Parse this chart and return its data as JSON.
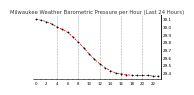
{
  "hours": [
    0,
    1,
    2,
    3,
    4,
    5,
    6,
    7,
    8,
    9,
    10,
    11,
    12,
    13,
    14,
    15,
    16,
    17,
    18,
    19,
    20,
    21,
    22,
    23
  ],
  "pressure": [
    30.1,
    30.09,
    30.07,
    30.04,
    30.0,
    29.97,
    29.93,
    29.87,
    29.8,
    29.73,
    29.65,
    29.58,
    29.52,
    29.47,
    29.43,
    29.4,
    29.39,
    29.38,
    29.37,
    29.37,
    29.37,
    29.37,
    29.36,
    29.36
  ],
  "ylim": [
    29.32,
    30.16
  ],
  "yticks": [
    29.4,
    29.5,
    29.6,
    29.7,
    29.8,
    29.9,
    30.0,
    30.1
  ],
  "ytick_labels": [
    "29.4",
    "29.5",
    "29.6",
    "29.7",
    "29.8",
    "29.9",
    "30.0",
    "30.1"
  ],
  "line_color": "#cc0000",
  "marker_color": "#000000",
  "grid_color": "#aaaaaa",
  "bg_color": "#ffffff",
  "title": "Milwaukee Weather Barometric Pressure per Hour (Last 24 Hours)",
  "title_fontsize": 3.8,
  "tick_fontsize": 3.0,
  "xlabel_fontsize": 2.8,
  "gridline_hours": [
    4,
    8,
    12,
    16,
    20
  ]
}
